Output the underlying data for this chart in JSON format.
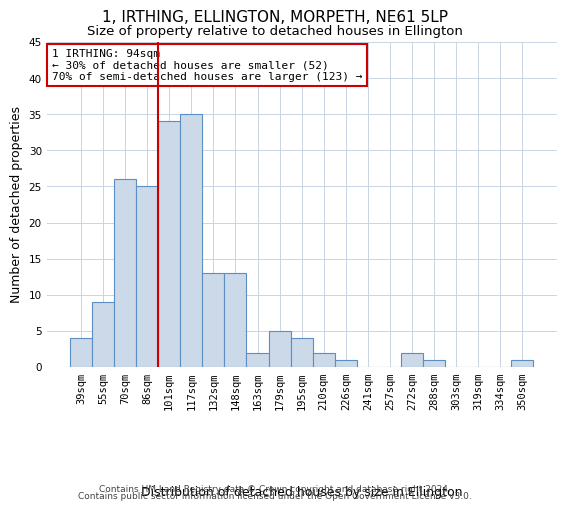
{
  "title": "1, IRTHING, ELLINGTON, MORPETH, NE61 5LP",
  "subtitle": "Size of property relative to detached houses in Ellington",
  "xlabel": "Distribution of detached houses by size in Ellington",
  "ylabel": "Number of detached properties",
  "categories": [
    "39sqm",
    "55sqm",
    "70sqm",
    "86sqm",
    "101sqm",
    "117sqm",
    "132sqm",
    "148sqm",
    "163sqm",
    "179sqm",
    "195sqm",
    "210sqm",
    "226sqm",
    "241sqm",
    "257sqm",
    "272sqm",
    "288sqm",
    "303sqm",
    "319sqm",
    "334sqm",
    "350sqm"
  ],
  "values": [
    4,
    9,
    26,
    25,
    34,
    35,
    13,
    13,
    2,
    5,
    4,
    2,
    1,
    0,
    0,
    2,
    1,
    0,
    0,
    0,
    1
  ],
  "bar_color": "#ccd9e8",
  "bar_edge_color": "#5b8fc4",
  "bar_linewidth": 0.8,
  "vline_x": 3.5,
  "vline_color": "#cc0000",
  "ylim": [
    0,
    45
  ],
  "yticks": [
    0,
    5,
    10,
    15,
    20,
    25,
    30,
    35,
    40,
    45
  ],
  "annotation_title": "1 IRTHING: 94sqm",
  "annotation_line1": "← 30% of detached houses are smaller (52)",
  "annotation_line2": "70% of semi-detached houses are larger (123) →",
  "annotation_box_color": "#ffffff",
  "annotation_box_edge": "#cc0000",
  "footer_line1": "Contains HM Land Registry data © Crown copyright and database right 2024.",
  "footer_line2": "Contains public sector information licensed under the Open Government Licence v3.0.",
  "bg_color": "#ffffff",
  "grid_color": "#c8d4e3",
  "title_fontsize": 11,
  "subtitle_fontsize": 9.5,
  "axis_label_fontsize": 9,
  "tick_fontsize": 7.5,
  "footer_fontsize": 6.5
}
